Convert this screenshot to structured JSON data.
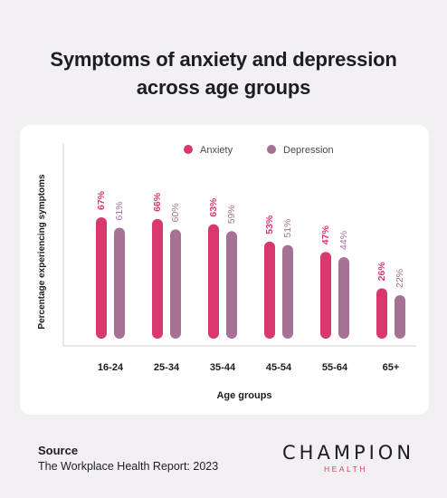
{
  "title_line1": "Symptoms of anxiety and depression",
  "title_line2": "across age groups",
  "chart_data": {
    "type": "bar",
    "categories": [
      "16-24",
      "25-34",
      "35-44",
      "45-54",
      "55-64",
      "65+"
    ],
    "series": [
      {
        "name": "Anxiety",
        "values": [
          67,
          66,
          63,
          53,
          47,
          26
        ],
        "labels": [
          "67%",
          "66%",
          "63%",
          "53%",
          "47%",
          "26%"
        ],
        "color": "#d8386b"
      },
      {
        "name": "Depression",
        "values": [
          61,
          60,
          59,
          51,
          44,
          22
        ],
        "labels": [
          "61%",
          "60%",
          "59%",
          "51%",
          "44%",
          "22%"
        ],
        "color": "#a57294"
      }
    ],
    "xlabel": "Age groups",
    "ylabel": "Percentage experiencing symptoms",
    "ylim": [
      0,
      80
    ],
    "grid": false,
    "legend": "top-right"
  },
  "source": {
    "heading": "Source",
    "text": "The Workplace Health Report: 2023"
  },
  "logo": {
    "main": "CHAMPION",
    "sub": "HEALTH"
  }
}
